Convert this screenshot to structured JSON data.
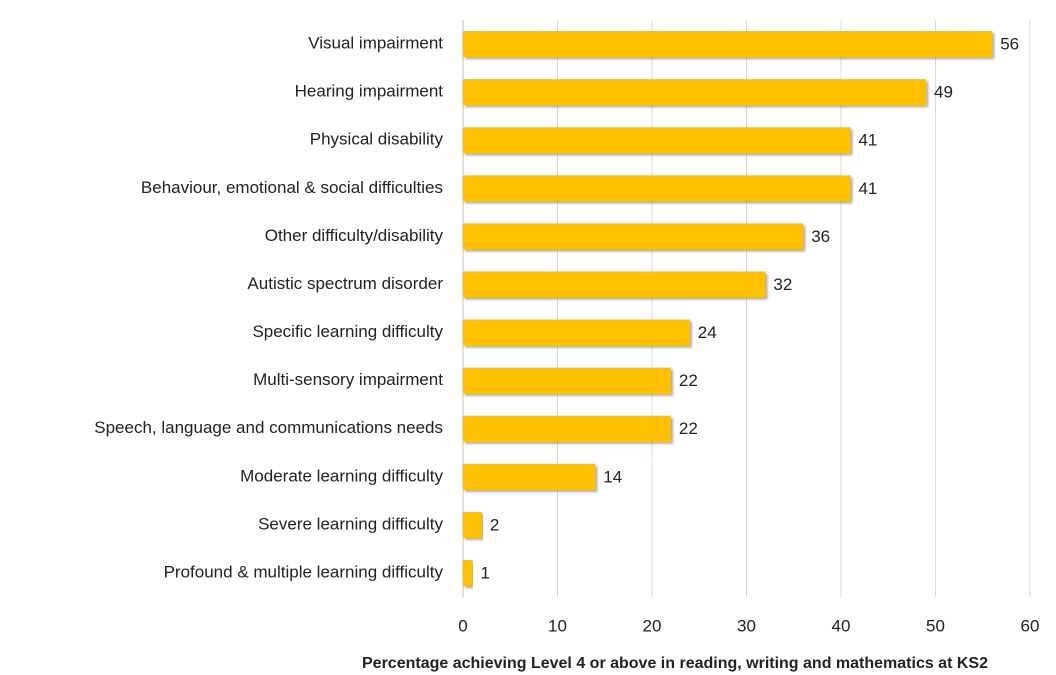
{
  "chart_data": {
    "type": "bar",
    "orientation": "horizontal",
    "x_label": "Percentage achieving Level 4 or above in reading, writing and mathematics at KS2",
    "categories": [
      "Visual impairment",
      "Hearing impairment",
      "Physical disability",
      "Behaviour, emotional & social difficulties",
      "Other difficulty/disability",
      "Autistic spectrum disorder",
      "Specific learning difficulty",
      "Multi-sensory impairment",
      "Speech, language and communications needs",
      "Moderate learning difficulty",
      "Severe learning difficulty",
      "Profound & multiple learning difficulty"
    ],
    "values": [
      56,
      49,
      41,
      41,
      36,
      32,
      24,
      22,
      22,
      14,
      2,
      1
    ],
    "color": "#ffc000",
    "xlim": [
      0,
      60
    ],
    "xticks": [
      0,
      10,
      20,
      30,
      40,
      50,
      60
    ],
    "grid": true
  }
}
